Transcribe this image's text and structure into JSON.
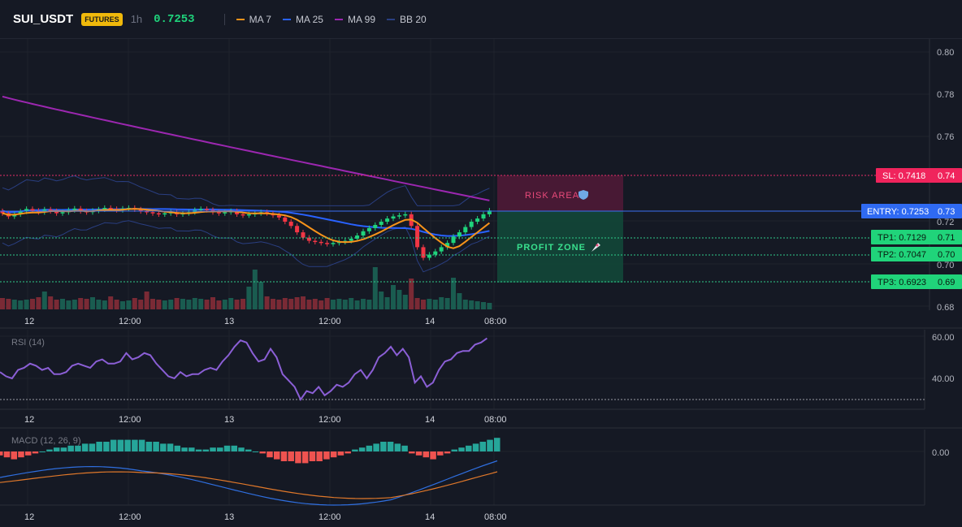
{
  "header": {
    "symbol": "SUI_USDT",
    "badge": "FUTURES",
    "timeframe": "1h",
    "price": "0.7253",
    "legend": [
      {
        "label": "MA 7",
        "color": "#f7931a"
      },
      {
        "label": "MA 25",
        "color": "#2962ff"
      },
      {
        "label": "MA 99",
        "color": "#9c27b0"
      },
      {
        "label": "BB 20",
        "color": "#2a3f82"
      }
    ]
  },
  "colors": {
    "up": "#1fd47c",
    "down": "#f23645",
    "vol_up": "#1a5c50",
    "vol_down": "#7a2a35",
    "ma7": "#f7931a",
    "ma25": "#2962ff",
    "ma99": "#9c27b0",
    "bb": "#2a3f82",
    "rsi": "#8b5fd6",
    "macd": "#2f6fe0",
    "signal": "#e0782a",
    "hist_up": "#26a69a",
    "hist_down": "#ef5350"
  },
  "main": {
    "price_ticks": [
      "0.80",
      "0.78",
      "0.76",
      "0.74",
      "0.73",
      "0.72",
      "0.71",
      "0.70",
      "0.69",
      "0.70",
      "0.68"
    ],
    "levels": {
      "sl": {
        "label": "SL: 0.7418",
        "axis": "0.74",
        "value": 0.7418
      },
      "entry": {
        "label": "ENTRY: 0.7253",
        "axis": "0.73",
        "value": 0.7253
      },
      "tp1": {
        "label": "TP1: 0.7129",
        "axis": "0.71",
        "value": 0.7129
      },
      "tp2": {
        "label": "TP2: 0.7047",
        "axis": "0.70",
        "value": 0.7047
      },
      "tp3": {
        "label": "TP3: 0.6923",
        "axis": "0.69",
        "value": 0.6923
      }
    },
    "risk_label": "RISK AREA",
    "risk_icon": "shield-icon",
    "profit_label": "PROFIT ZONE",
    "profit_icon": "rocket-icon",
    "time_labels": [
      "12",
      "12:00",
      "13",
      "12:00",
      "14",
      "08:00"
    ]
  },
  "rsi": {
    "title": "RSI (14)",
    "ticks": [
      "60.00",
      "40.00"
    ],
    "values": [
      43,
      41,
      40,
      44,
      45,
      47,
      46,
      44,
      45,
      42,
      42,
      43,
      46,
      47,
      46,
      45,
      48,
      49,
      47,
      47,
      48,
      52,
      49,
      50,
      52,
      51,
      47,
      44,
      41,
      40,
      43,
      41,
      42,
      42,
      44,
      45,
      44,
      48,
      51,
      55,
      58,
      57,
      52,
      48,
      49,
      54,
      50,
      42,
      39,
      36,
      30,
      34,
      33,
      36,
      32,
      34,
      37,
      36,
      38,
      42,
      44,
      40,
      44,
      50,
      52,
      55,
      51,
      54,
      50,
      38,
      41,
      36,
      38,
      44,
      48,
      49,
      52,
      53,
      53,
      56,
      57,
      59
    ]
  },
  "macd": {
    "title": "MACD (12, 26, 9)",
    "tick": "0.00",
    "hist": [
      -2,
      -3,
      -4,
      -3,
      -2,
      -1,
      0,
      1,
      2,
      2,
      3,
      3,
      4,
      4,
      5,
      5,
      6,
      6,
      6,
      6,
      6,
      5,
      5,
      4,
      4,
      3,
      2,
      2,
      1,
      1,
      2,
      2,
      3,
      3,
      2,
      1,
      0,
      -1,
      -3,
      -4,
      -5,
      -5,
      -6,
      -6,
      -5,
      -5,
      -4,
      -3,
      -2,
      -1,
      1,
      2,
      3,
      4,
      5,
      5,
      4,
      3,
      -1,
      -2,
      -3,
      -4,
      -2,
      -1,
      1,
      2,
      3,
      4,
      5,
      6,
      7
    ]
  }
}
